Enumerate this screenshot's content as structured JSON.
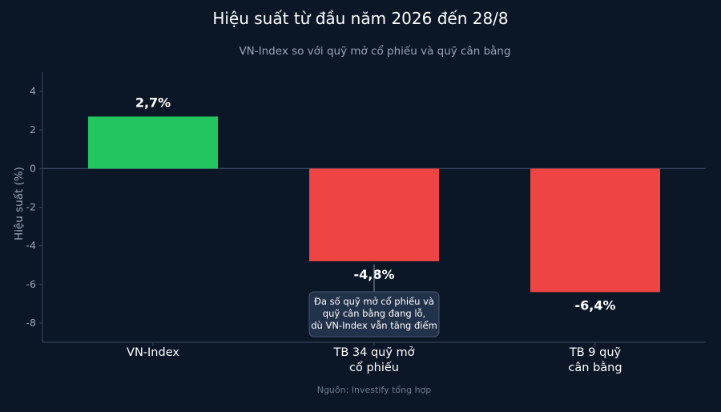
{
  "colors": {
    "background": "#0b1727",
    "positive": "#22c55e",
    "negative": "#ef4444",
    "axis": "#3a4a60",
    "annotation_box": "#22324a"
  },
  "chart_data": {
    "type": "bar",
    "title": "Hiệu suất từ đầu năm 2026 đến 28/8",
    "subtitle": "VN-Index so với quỹ mở cổ phiếu và quỹ cân bằng",
    "xlabel": "",
    "ylabel": "Hiệu suất (%)",
    "ylim": [
      -9,
      5
    ],
    "yticks": [
      4,
      2,
      0,
      -2,
      -4,
      -6,
      -8
    ],
    "categories": [
      [
        "VN-Index"
      ],
      [
        "TB 34 quỹ mở",
        "cổ phiếu"
      ],
      [
        "TB 9 quỹ",
        "cân bằng"
      ]
    ],
    "values": [
      2.7,
      -4.8,
      -6.4
    ],
    "data_labels": [
      "2,7%",
      "-4,8%",
      "-6,4%"
    ],
    "grid": false,
    "annotation": {
      "lines": [
        "Đa số quỹ mở cổ phiếu và",
        "quỹ cân bằng đang lỗ,",
        "dù VN-Index vẫn tăng điểm"
      ],
      "points_to_category": 1
    },
    "source": "Nguồn: Investify tổng hợp"
  }
}
